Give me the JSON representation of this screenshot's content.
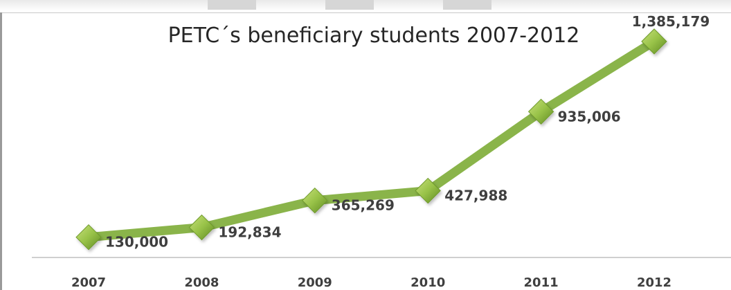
{
  "chart_data": {
    "type": "line",
    "title": "PETC´s beneficiary students 2007-2012",
    "categories": [
      "2007",
      "2008",
      "2009",
      "2010",
      "2011",
      "2012"
    ],
    "series": [
      {
        "values": [
          130000,
          192834,
          365269,
          427988,
          935006,
          1385179
        ],
        "labels": [
          "130,000",
          "192,834",
          "365,269",
          "427,988",
          "935,006",
          "1,385,179"
        ],
        "color": "#8ab44a",
        "marker": "diamond"
      }
    ],
    "ylim": [
      0,
      1500000
    ],
    "grid": false,
    "legend": "none"
  }
}
